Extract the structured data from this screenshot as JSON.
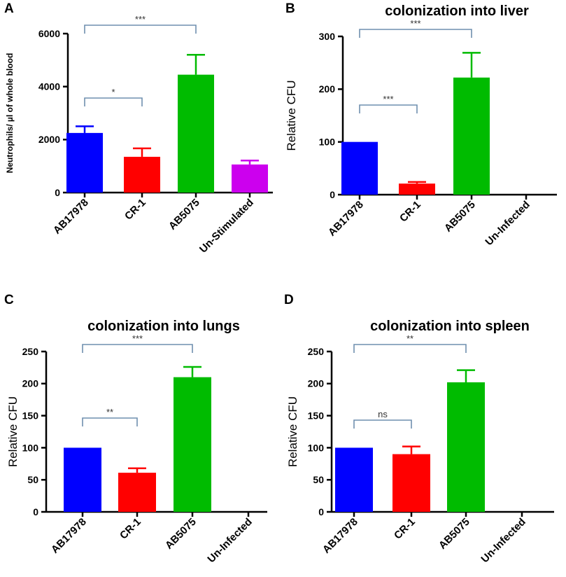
{
  "chart_data": [
    {
      "panel": "A",
      "type": "bar",
      "title": "",
      "xlabel": "",
      "ylabel": "Neutrophils/ µl of whole blood",
      "ylim": [
        0,
        6000
      ],
      "yticks": [
        0,
        2000,
        4000,
        6000
      ],
      "categories": [
        "AB17978",
        "CR-1",
        "AB5075",
        "Un-Stimulated"
      ],
      "values": [
        2250,
        1350,
        4450,
        1060
      ],
      "errors": [
        250,
        320,
        750,
        150
      ],
      "colors": [
        "#0000ff",
        "#ff0000",
        "#00bb00",
        "#cc00ee"
      ],
      "comparisons": [
        {
          "from": 0,
          "to": 1,
          "label": "*"
        },
        {
          "from": 0,
          "to": 2,
          "label": "***"
        }
      ]
    },
    {
      "panel": "B",
      "type": "bar",
      "title": "colonization into liver",
      "xlabel": "",
      "ylabel": "Relative CFU",
      "ylim": [
        0,
        300
      ],
      "yticks": [
        0,
        100,
        200,
        300
      ],
      "categories": [
        "AB17978",
        "CR-1",
        "AB5075",
        "Un-Infected"
      ],
      "values": [
        100,
        21,
        222,
        0
      ],
      "errors": [
        0,
        3,
        47,
        0
      ],
      "colors": [
        "#0000ff",
        "#ff0000",
        "#00bb00",
        "#cc00ee"
      ],
      "comparisons": [
        {
          "from": 0,
          "to": 1,
          "label": "***"
        },
        {
          "from": 0,
          "to": 2,
          "label": "***"
        }
      ]
    },
    {
      "panel": "C",
      "type": "bar",
      "title": "colonization into lungs",
      "xlabel": "",
      "ylabel": "Relative CFU",
      "ylim": [
        0,
        250
      ],
      "yticks": [
        0,
        50,
        100,
        150,
        200,
        250
      ],
      "categories": [
        "AB17978",
        "CR-1",
        "AB5075",
        "Un-Infected"
      ],
      "values": [
        100,
        61,
        210,
        0
      ],
      "errors": [
        0,
        7,
        16,
        0
      ],
      "colors": [
        "#0000ff",
        "#ff0000",
        "#00bb00",
        "#cc00ee"
      ],
      "comparisons": [
        {
          "from": 0,
          "to": 1,
          "label": "**"
        },
        {
          "from": 0,
          "to": 2,
          "label": "***"
        }
      ]
    },
    {
      "panel": "D",
      "type": "bar",
      "title": "colonization into spleen",
      "xlabel": "",
      "ylabel": "Relative CFU",
      "ylim": [
        0,
        250
      ],
      "yticks": [
        0,
        50,
        100,
        150,
        200,
        250
      ],
      "categories": [
        "AB17978",
        "CR-1",
        "AB5075",
        "Un-Infected"
      ],
      "values": [
        100,
        90,
        202,
        0
      ],
      "errors": [
        0,
        12,
        19,
        0
      ],
      "colors": [
        "#0000ff",
        "#ff0000",
        "#00bb00",
        "#cc00ee"
      ],
      "comparisons": [
        {
          "from": 0,
          "to": 1,
          "label": "ns"
        },
        {
          "from": 0,
          "to": 2,
          "label": "**"
        }
      ]
    }
  ],
  "colors": {
    "bracket": "#6f8faf",
    "axis": "#000000"
  }
}
